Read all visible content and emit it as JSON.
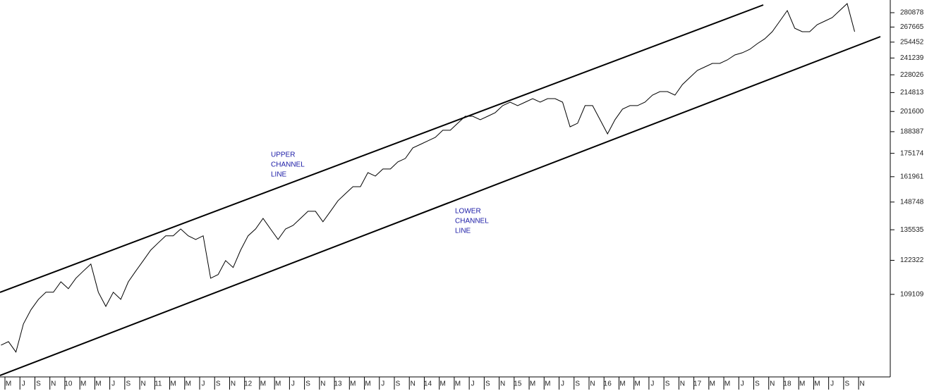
{
  "chart_data": {
    "type": "line",
    "log_scale": true,
    "color": "#000000",
    "categories": [
      null,
      "M",
      null,
      "J",
      null,
      "S",
      null,
      "N",
      null,
      "10",
      null,
      "M",
      null,
      "M",
      null,
      "J",
      null,
      "S",
      null,
      "N",
      null,
      "11",
      null,
      "M",
      null,
      "M",
      null,
      "J",
      null,
      "S",
      null,
      "N",
      null,
      "12",
      null,
      "M",
      null,
      "M",
      null,
      "J",
      null,
      "S",
      null,
      "N",
      null,
      "13",
      null,
      "M",
      null,
      "M",
      null,
      "J",
      null,
      "S",
      null,
      "N",
      null,
      "14",
      null,
      "M",
      null,
      "M",
      null,
      "J",
      null,
      "S",
      null,
      "N",
      null,
      "15",
      null,
      "M",
      null,
      "M",
      null,
      "J",
      null,
      "S",
      null,
      "N",
      null,
      "16",
      null,
      "M",
      null,
      "M",
      null,
      "J",
      null,
      "S",
      null,
      "N",
      null,
      "17",
      null,
      "M",
      null,
      "M",
      null,
      "J",
      null,
      "S",
      null,
      "N",
      null,
      "18",
      null,
      "M",
      null,
      "M",
      null,
      "J",
      null,
      "S",
      null,
      "N",
      null
    ],
    "values": [
      92000,
      93100,
      89900,
      98800,
      103600,
      107300,
      109900,
      109900,
      113800,
      111200,
      115200,
      118000,
      120800,
      109900,
      104800,
      109900,
      107300,
      113800,
      118000,
      122200,
      126600,
      129700,
      132800,
      132800,
      135900,
      132800,
      131200,
      132800,
      115200,
      116600,
      122200,
      119400,
      126600,
      132800,
      135900,
      140800,
      135900,
      131200,
      135900,
      137500,
      140800,
      144200,
      144200,
      139200,
      144200,
      149400,
      153000,
      156600,
      156600,
      164200,
      162300,
      166200,
      166200,
      170200,
      172200,
      178400,
      180500,
      182700,
      184800,
      189300,
      189300,
      193800,
      198400,
      198400,
      196100,
      198400,
      200800,
      205600,
      208000,
      205600,
      208000,
      210500,
      208000,
      210500,
      210500,
      208000,
      191500,
      193800,
      205600,
      205600,
      196100,
      187000,
      196100,
      203200,
      205600,
      205600,
      208000,
      213000,
      215500,
      215500,
      213000,
      220700,
      226000,
      231400,
      234100,
      236900,
      236900,
      239700,
      243700,
      245500,
      248400,
      253100,
      257300,
      263500,
      273000,
      282900,
      266600,
      263500,
      263500,
      269800,
      273000,
      276300,
      282900,
      289600,
      263500,
      null,
      null
    ],
    "ylim": [
      82700,
      293100
    ],
    "yticks": [
      109109,
      122322,
      135535,
      148748,
      161961,
      175174,
      188387,
      201600,
      214813,
      228026,
      241239,
      254452,
      267665,
      280878
    ],
    "annotations": [
      {
        "lines": [
          "UPPER",
          "CHANNEL",
          "LINE"
        ],
        "color": "#1a1aa6"
      },
      {
        "lines": [
          "LOWER",
          "CHANNEL",
          "LINE"
        ],
        "color": "#1a1aa6"
      }
    ]
  }
}
